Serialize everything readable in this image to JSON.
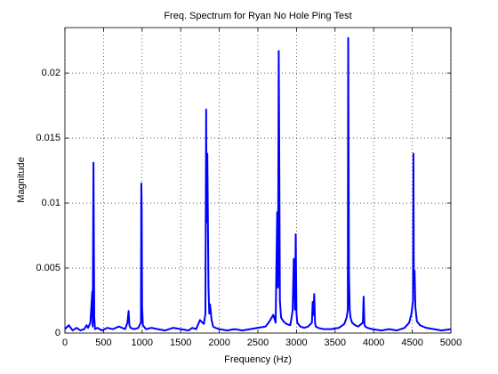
{
  "chart_data": {
    "type": "line",
    "title": "Freq. Spectrum for Ryan No Hole Ping Test",
    "xlabel": "Frequency (Hz)",
    "ylabel": "Magnitude",
    "xlim": [
      0,
      5000
    ],
    "ylim": [
      0,
      0.0235
    ],
    "xticks": [
      0,
      500,
      1000,
      1500,
      2000,
      2500,
      3000,
      3500,
      4000,
      4500,
      5000
    ],
    "yticks": [
      0,
      0.005,
      0.01,
      0.015,
      0.02
    ],
    "grid": true,
    "series": [
      {
        "color": "#0000ff",
        "x": [
          0,
          50,
          100,
          150,
          200,
          250,
          280,
          300,
          330,
          355,
          360,
          370,
          380,
          390,
          420,
          480,
          550,
          620,
          700,
          780,
          810,
          825,
          835,
          850,
          900,
          950,
          985,
          990,
          995,
          1000,
          1010,
          1050,
          1120,
          1200,
          1300,
          1400,
          1500,
          1600,
          1650,
          1700,
          1750,
          1800,
          1820,
          1830,
          1835,
          1845,
          1860,
          1870,
          1880,
          1900,
          1920,
          1950,
          2000,
          2100,
          2200,
          2300,
          2400,
          2500,
          2600,
          2650,
          2700,
          2730,
          2750,
          2760,
          2770,
          2775,
          2785,
          2800,
          2830,
          2870,
          2920,
          2950,
          2965,
          2980,
          2990,
          3000,
          3010,
          3050,
          3100,
          3150,
          3200,
          3210,
          3220,
          3230,
          3240,
          3250,
          3280,
          3350,
          3450,
          3550,
          3620,
          3650,
          3665,
          3670,
          3680,
          3690,
          3700,
          3720,
          3760,
          3800,
          3860,
          3870,
          3880,
          3890,
          3920,
          3980,
          4100,
          4200,
          4300,
          4400,
          4460,
          4490,
          4510,
          4515,
          4520,
          4530,
          4540,
          4560,
          4600,
          4680,
          4780,
          4880,
          5000
        ],
        "values": [
          0.0003,
          0.0006,
          0.0002,
          0.0004,
          0.0002,
          0.0003,
          0.0006,
          0.0004,
          0.0008,
          0.0032,
          0.0005,
          0.0131,
          0.0012,
          0.0003,
          0.0004,
          0.0002,
          0.0004,
          0.0003,
          0.0005,
          0.0003,
          0.0008,
          0.0017,
          0.0006,
          0.0004,
          0.0003,
          0.0004,
          0.0008,
          0.0115,
          0.0095,
          0.002,
          0.0006,
          0.0003,
          0.0004,
          0.0003,
          0.0002,
          0.0004,
          0.0003,
          0.0002,
          0.0004,
          0.0003,
          0.001,
          0.0007,
          0.0015,
          0.0172,
          0.0085,
          0.0138,
          0.0035,
          0.0015,
          0.0022,
          0.001,
          0.0005,
          0.0004,
          0.0003,
          0.0002,
          0.0003,
          0.0002,
          0.0003,
          0.0004,
          0.0005,
          0.0009,
          0.0014,
          0.0008,
          0.0093,
          0.0035,
          0.0217,
          0.016,
          0.0025,
          0.0012,
          0.0009,
          0.0007,
          0.0006,
          0.0017,
          0.0057,
          0.0018,
          0.0076,
          0.0015,
          0.0008,
          0.0005,
          0.0004,
          0.0005,
          0.0008,
          0.0024,
          0.0014,
          0.003,
          0.0008,
          0.0005,
          0.0004,
          0.0003,
          0.0003,
          0.0004,
          0.0007,
          0.0012,
          0.0018,
          0.0227,
          0.0045,
          0.0018,
          0.0012,
          0.0008,
          0.0006,
          0.0005,
          0.0008,
          0.0028,
          0.0007,
          0.0005,
          0.0004,
          0.0003,
          0.0002,
          0.0003,
          0.0002,
          0.0004,
          0.0008,
          0.0015,
          0.0025,
          0.0138,
          0.0045,
          0.0048,
          0.002,
          0.0009,
          0.0006,
          0.0004,
          0.0003,
          0.0002,
          0.0003
        ]
      }
    ]
  }
}
